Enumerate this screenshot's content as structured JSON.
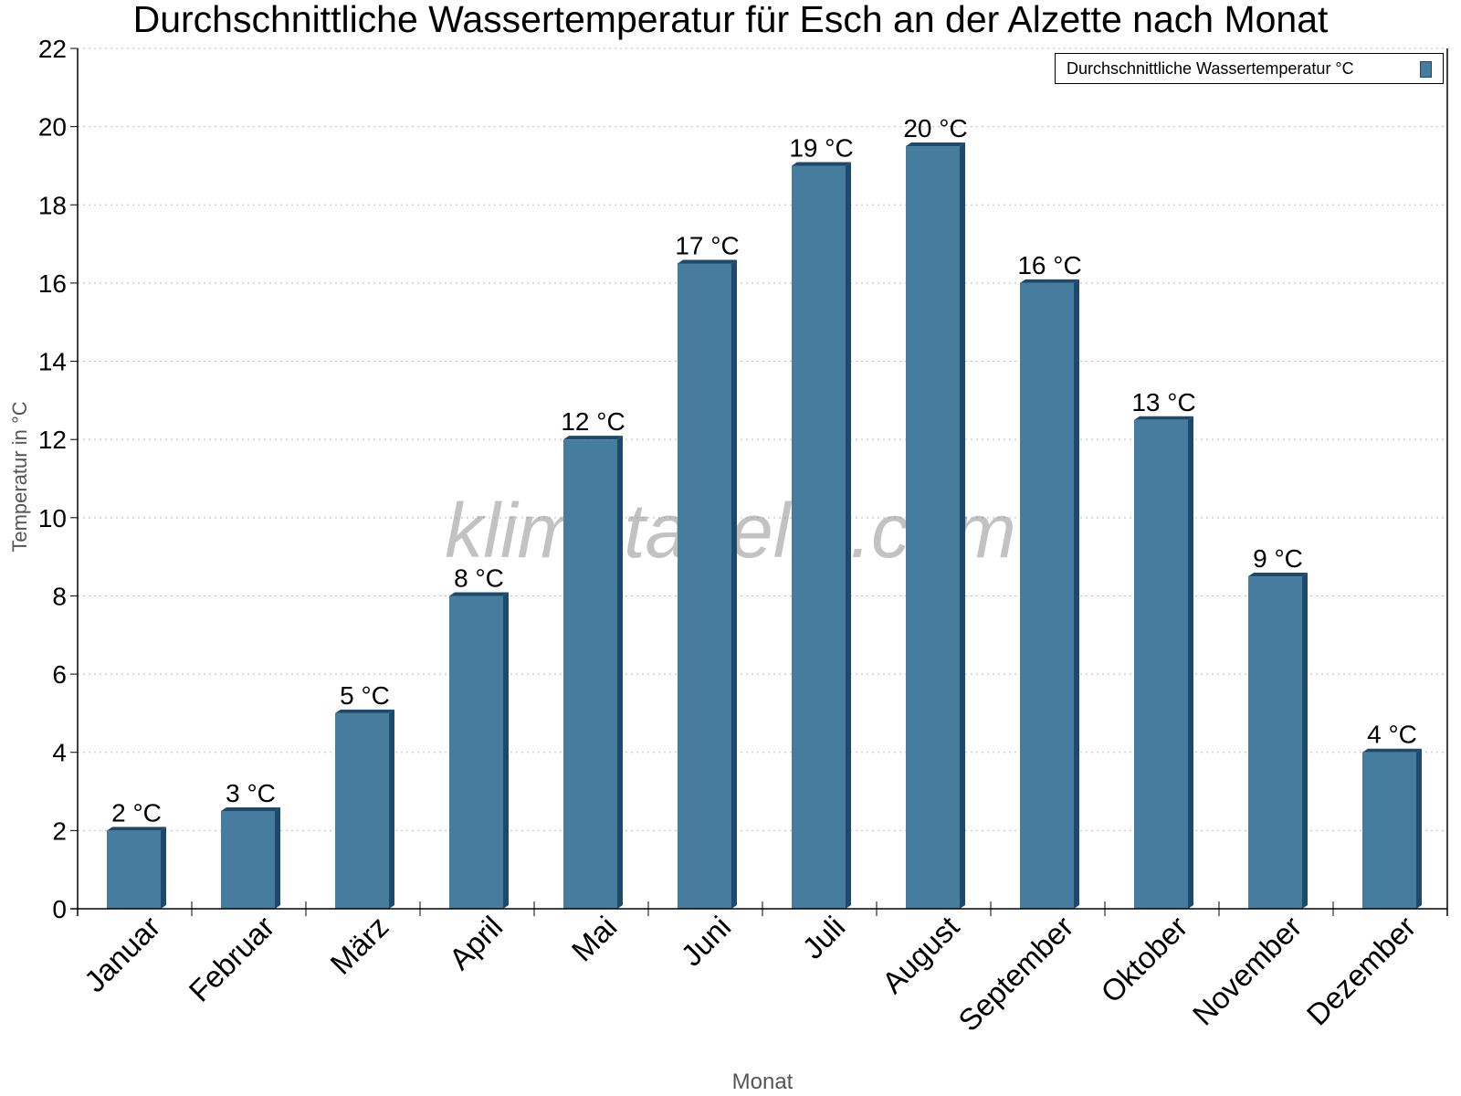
{
  "chart_data": {
    "type": "bar",
    "title": "Durchschnittliche Wassertemperatur für Esch an der Alzette nach Monat",
    "xlabel": "Monat",
    "ylabel": "Temperatur in °C",
    "categories": [
      "Januar",
      "Februar",
      "März",
      "April",
      "Mai",
      "Juni",
      "Juli",
      "August",
      "September",
      "Oktober",
      "November",
      "Dezember"
    ],
    "series": [
      {
        "name": "Durchschnittliche Wassertemperatur °C",
        "values": [
          2,
          2.5,
          5,
          8,
          12,
          16.5,
          19,
          19.5,
          16,
          12.5,
          8.5,
          4
        ],
        "data_labels": [
          "2 °C",
          "3 °C",
          "5 °C",
          "8 °C",
          "12 °C",
          "17 °C",
          "19 °C",
          "20 °C",
          "16 °C",
          "13 °C",
          "9 °C",
          "4 °C"
        ]
      }
    ],
    "ylim": [
      0,
      22
    ],
    "yticks": [
      0,
      2,
      4,
      6,
      8,
      10,
      12,
      14,
      16,
      18,
      20,
      22
    ],
    "grid": true,
    "legend_position": "top-right",
    "colors": {
      "bar": "#467c9e",
      "bar_side": "#1d4a6b"
    },
    "watermark": "klimatabelle.com"
  }
}
